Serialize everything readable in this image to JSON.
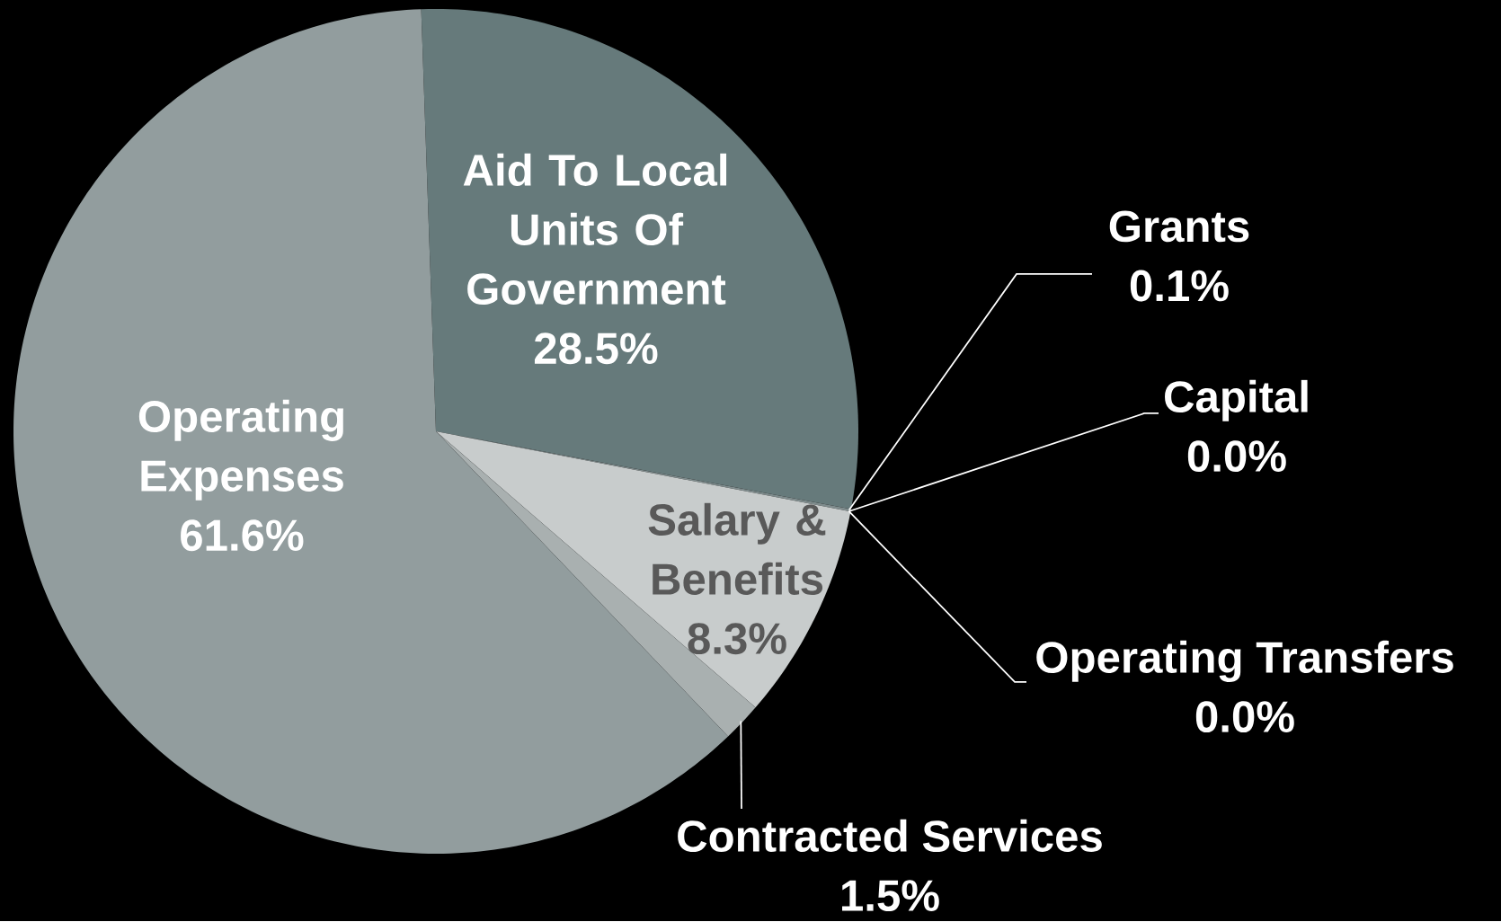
{
  "chart_data": {
    "type": "pie",
    "categories": [
      "Aid To Local Units Of Government",
      "Grants",
      "Capital",
      "Operating Transfers",
      "Salary & Benefits",
      "Contracted Services",
      "Operating Expenses"
    ],
    "values": [
      28.5,
      0.1,
      0.0,
      0.0,
      8.3,
      1.5,
      61.6
    ],
    "value_labels": [
      "28.5%",
      "0.1%",
      "0.0%",
      "0.0%",
      "8.3%",
      "1.5%",
      "61.6%"
    ],
    "colors": [
      "#667a7b",
      "#7f8c8d",
      "#8a9596",
      "#9aa3a4",
      "#c8cccc",
      "#a9b0b0",
      "#929d9e"
    ]
  }
}
